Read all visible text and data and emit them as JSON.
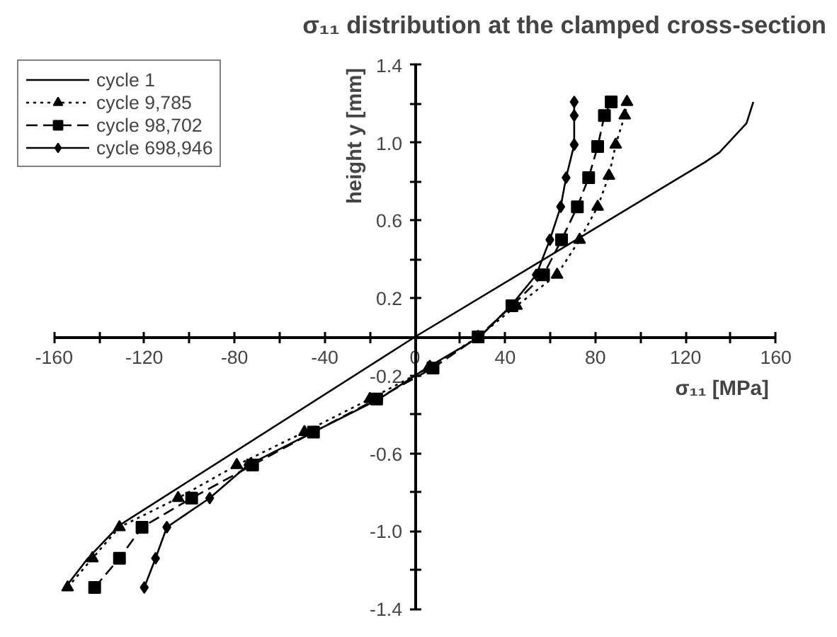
{
  "chart_data": {
    "type": "line",
    "title": "σ₁₁ distribution at the clamped cross-section",
    "xlabel": "σ₁₁ [MPa]",
    "ylabel": "height y [mm]",
    "xlim": [
      -160,
      160
    ],
    "ylim": [
      -1.4,
      1.4
    ],
    "xticks": [
      -160,
      {
        "value": -140,
        "label": null
      },
      -120,
      {
        "value": -100,
        "label": null
      },
      -80,
      {
        "value": -60,
        "label": null
      },
      -40,
      {
        "value": -20,
        "label": null
      },
      0,
      {
        "value": 20,
        "label": null
      },
      40,
      {
        "value": 60,
        "label": null
      },
      80,
      {
        "value": 100,
        "label": null
      },
      120,
      {
        "value": 140,
        "label": null
      },
      160
    ],
    "yticks": [
      {
        "value": -1.4,
        "label": "-1.4"
      },
      {
        "value": -1.2,
        "label": null
      },
      {
        "value": -1.0,
        "label": "-1.0"
      },
      {
        "value": -0.8,
        "label": null
      },
      {
        "value": -0.6,
        "label": "-0.6"
      },
      {
        "value": -0.4,
        "label": null
      },
      {
        "value": -0.2,
        "label": "-0.2"
      },
      {
        "value": 0.2,
        "label": "0.2"
      },
      {
        "value": 0.4,
        "label": null
      },
      {
        "value": 0.6,
        "label": "0.6"
      },
      {
        "value": 0.8,
        "label": null
      },
      {
        "value": 1.0,
        "label": "1.0"
      },
      {
        "value": 1.2,
        "label": null
      },
      {
        "value": 1.4,
        "label": "1.4"
      }
    ],
    "grid": false,
    "legend": "top left",
    "series": [
      {
        "name": "cycle 1",
        "color": "#000000",
        "marker": "none",
        "line_style": "solid",
        "x": [
          -155,
          -145,
          -131,
          0,
          128.6,
          135,
          147,
          150
        ],
        "values": [
          -1.29,
          -1.14,
          -0.97,
          0,
          0.9,
          0.95,
          1.1,
          1.21
        ]
      },
      {
        "name": "cycle 9,785",
        "color": "#000000",
        "marker": "triangle",
        "line_style": "dotted",
        "x": [
          -154,
          -143,
          -131,
          -105,
          -79,
          -49,
          -20,
          6,
          28,
          45,
          63,
          73,
          81,
          86,
          89,
          93,
          94
        ],
        "values": [
          -1.29,
          -1.14,
          -0.98,
          -0.83,
          -0.66,
          -0.49,
          -0.32,
          -0.16,
          0,
          0.16,
          0.32,
          0.5,
          0.67,
          0.83,
          0.99,
          1.14,
          1.21
        ]
      },
      {
        "name": "cycle 98,702",
        "color": "#000000",
        "marker": "square",
        "line_style": "dashed",
        "x": [
          -142,
          -131,
          -121,
          -99,
          -72,
          -45,
          -17,
          8,
          28,
          43,
          57,
          65,
          72,
          77,
          81,
          84,
          87
        ],
        "values": [
          -1.29,
          -1.14,
          -0.98,
          -0.83,
          -0.66,
          -0.49,
          -0.32,
          -0.16,
          0,
          0.16,
          0.32,
          0.5,
          0.67,
          0.82,
          0.98,
          1.14,
          1.21
        ]
      },
      {
        "name": "cycle 698,946",
        "color": "#000000",
        "marker": "diamond",
        "line_style": "solid",
        "x": [
          -120,
          -115,
          -110,
          -91,
          -74,
          -45,
          -16,
          6.6,
          28.7,
          42.5,
          53.8,
          59.8,
          64.6,
          67,
          70.6,
          70.6,
          70.6
        ],
        "values": [
          -1.29,
          -1.14,
          -0.98,
          -0.83,
          -0.66,
          -0.49,
          -0.32,
          -0.15,
          0,
          0.16,
          0.32,
          0.5,
          0.67,
          0.82,
          0.99,
          1.14,
          1.21
        ]
      }
    ]
  }
}
